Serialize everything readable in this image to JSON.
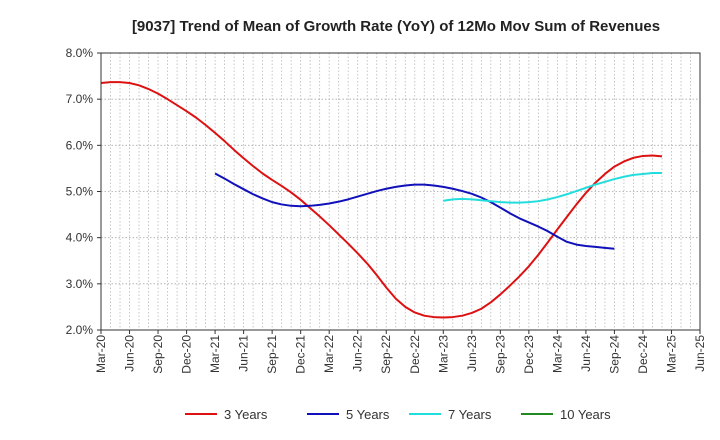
{
  "chart_data": {
    "type": "line",
    "title": "[9037]  Trend of Mean of Growth Rate (YoY) of 12Mo Mov Sum of Revenues",
    "xlabel": "",
    "ylabel": "",
    "ylim": [
      2.0,
      8.0
    ],
    "yticks": [
      2.0,
      3.0,
      4.0,
      5.0,
      6.0,
      7.0,
      8.0
    ],
    "ytick_labels": [
      "2.0%",
      "3.0%",
      "4.0%",
      "5.0%",
      "6.0%",
      "7.0%",
      "8.0%"
    ],
    "x_tick_labels": [
      "Mar-20",
      "Jun-20",
      "Sep-20",
      "Dec-20",
      "Mar-21",
      "Jun-21",
      "Sep-21",
      "Dec-21",
      "Mar-22",
      "Jun-22",
      "Sep-22",
      "Dec-22",
      "Mar-23",
      "Jun-23",
      "Sep-23",
      "Dec-23",
      "Mar-24",
      "Jun-24",
      "Sep-24",
      "Dec-24",
      "Mar-25",
      "Jun-25"
    ],
    "x_tick_index": [
      0,
      3,
      6,
      9,
      12,
      15,
      18,
      21,
      24,
      27,
      30,
      33,
      36,
      39,
      42,
      45,
      48,
      51,
      54,
      57,
      60,
      63
    ],
    "grid": true,
    "legend_position": "bottom",
    "series": [
      {
        "name": "3 Years",
        "color": "#dd1111",
        "start_index": 0,
        "values": [
          7.35,
          7.37,
          7.37,
          7.35,
          7.3,
          7.22,
          7.12,
          7.0,
          6.87,
          6.74,
          6.6,
          6.44,
          6.27,
          6.09,
          5.9,
          5.72,
          5.55,
          5.39,
          5.25,
          5.12,
          4.98,
          4.82,
          4.64,
          4.46,
          4.27,
          4.07,
          3.87,
          3.66,
          3.44,
          3.19,
          2.92,
          2.68,
          2.5,
          2.38,
          2.31,
          2.28,
          2.27,
          2.28,
          2.31,
          2.37,
          2.46,
          2.6,
          2.77,
          2.96,
          3.16,
          3.38,
          3.63,
          3.9,
          4.18,
          4.45,
          4.72,
          4.97,
          5.19,
          5.38,
          5.54,
          5.65,
          5.73,
          5.77,
          5.78,
          5.76
        ]
      },
      {
        "name": "5 Years",
        "color": "#1111bb",
        "start_index": 12,
        "values": [
          5.39,
          5.28,
          5.16,
          5.05,
          4.94,
          4.85,
          4.77,
          4.72,
          4.69,
          4.68,
          4.69,
          4.71,
          4.74,
          4.78,
          4.83,
          4.89,
          4.95,
          5.01,
          5.06,
          5.1,
          5.13,
          5.15,
          5.15,
          5.13,
          5.1,
          5.06,
          5.01,
          4.95,
          4.87,
          4.77,
          4.65,
          4.53,
          4.42,
          4.33,
          4.24,
          4.14,
          4.02,
          3.91,
          3.85,
          3.82,
          3.8,
          3.78,
          3.76
        ]
      },
      {
        "name": "7 Years",
        "color": "#22dddd",
        "start_index": 36,
        "values": [
          4.8,
          4.83,
          4.84,
          4.83,
          4.81,
          4.79,
          4.77,
          4.76,
          4.76,
          4.77,
          4.79,
          4.83,
          4.88,
          4.94,
          5.01,
          5.08,
          5.15,
          5.21,
          5.27,
          5.32,
          5.36,
          5.38,
          5.4,
          5.4
        ]
      },
      {
        "name": "10 Years",
        "color": "#228822",
        "start_index": 0,
        "values": []
      }
    ]
  }
}
